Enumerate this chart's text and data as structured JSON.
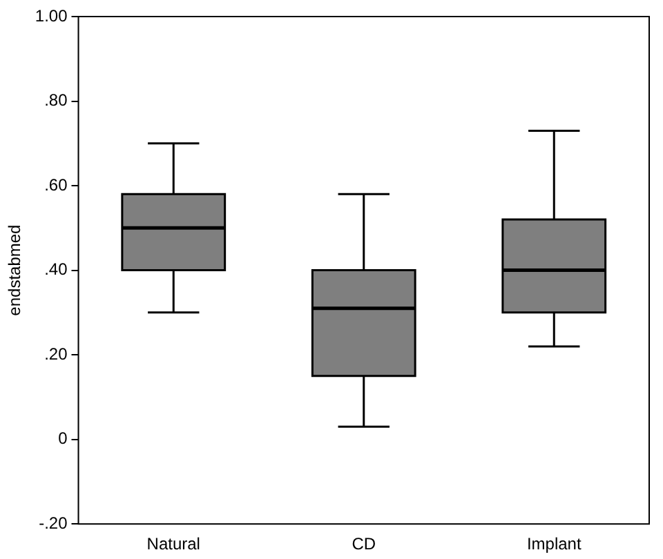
{
  "chart_data": {
    "type": "box",
    "ylabel": "endstabmed",
    "categories": [
      "Natural",
      "CD",
      "Implant"
    ],
    "boxes": [
      {
        "low": 0.3,
        "q1": 0.4,
        "median": 0.5,
        "q3": 0.58,
        "high": 0.7
      },
      {
        "low": 0.03,
        "q1": 0.15,
        "median": 0.31,
        "q3": 0.4,
        "high": 0.58
      },
      {
        "low": 0.22,
        "q1": 0.3,
        "median": 0.4,
        "q3": 0.52,
        "high": 0.73
      }
    ],
    "color": "#7f7f7f",
    "ylim": [
      -0.2,
      1.0
    ],
    "yticks": [
      {
        "value": -0.2,
        "label": "-.20"
      },
      {
        "value": 0,
        "label": "0"
      },
      {
        "value": 0.2,
        "label": ".20"
      },
      {
        "value": 0.4,
        "label": ".40"
      },
      {
        "value": 0.6,
        "label": ".60"
      },
      {
        "value": 0.8,
        "label": ".80"
      },
      {
        "value": 1.0,
        "label": "1.00"
      }
    ],
    "grid": false,
    "legend": false
  }
}
